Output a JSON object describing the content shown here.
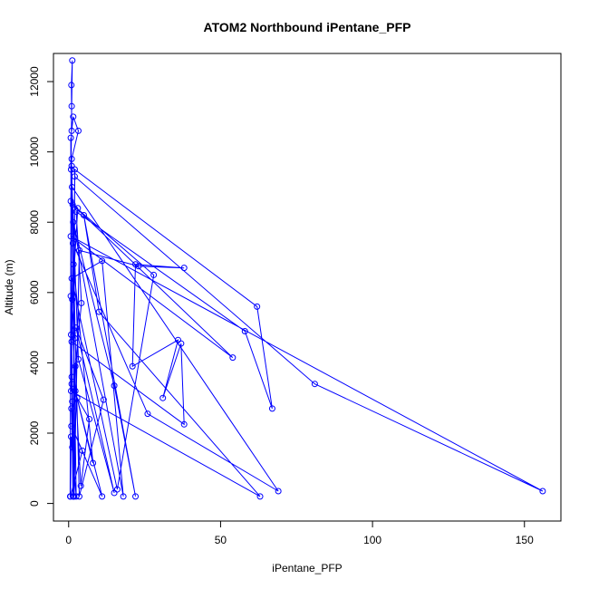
{
  "chart_data": {
    "type": "line",
    "title": "ATOM2 Northbound iPentane_PFP",
    "xlabel": "iPentane_PFP",
    "ylabel": "Altitude (m)",
    "xlim": [
      -5,
      162
    ],
    "ylim": [
      -500,
      12800
    ],
    "xticks": [
      0,
      50,
      100,
      150
    ],
    "yticks": [
      0,
      2000,
      4000,
      6000,
      8000,
      10000,
      12000
    ],
    "color": "#0000ff",
    "grid": false,
    "series": [
      {
        "points": [
          [
            0.5,
            200
          ],
          [
            0.8,
            9500
          ],
          [
            1.0,
            11300
          ],
          [
            1.2,
            12600
          ],
          [
            0.9,
            11900
          ],
          [
            1.0,
            10600
          ],
          [
            1.5,
            11000
          ],
          [
            3.2,
            10600
          ],
          [
            1.0,
            9800
          ],
          [
            0.7,
            8600
          ],
          [
            3.0,
            8400
          ],
          [
            1.2,
            5800
          ],
          [
            0.8,
            4800
          ],
          [
            1.0,
            3400
          ],
          [
            1.4,
            200
          ],
          [
            2.0,
            9500
          ],
          [
            62,
            5600
          ],
          [
            67,
            2700
          ],
          [
            58,
            4900
          ],
          [
            2.5,
            8300
          ],
          [
            4.2,
            5700
          ],
          [
            2.2,
            3900
          ],
          [
            1.8,
            200
          ],
          [
            3.5,
            7200
          ],
          [
            23,
            6750
          ],
          [
            38,
            6700
          ],
          [
            22,
            6800
          ],
          [
            21,
            3900
          ],
          [
            36,
            4650
          ],
          [
            31,
            3000
          ],
          [
            37,
            4550
          ],
          [
            38,
            2250
          ],
          [
            1.0,
            4600
          ],
          [
            1.2,
            2900
          ],
          [
            1.6,
            200
          ],
          [
            2.0,
            9300
          ],
          [
            81,
            3400
          ],
          [
            156,
            350
          ],
          [
            0.7,
            7600
          ],
          [
            54,
            4150
          ],
          [
            1.3,
            8500
          ],
          [
            28,
            6500
          ],
          [
            16,
            400
          ],
          [
            1.0,
            6400
          ],
          [
            11,
            6900
          ],
          [
            18,
            200
          ],
          [
            1.5,
            8000
          ],
          [
            15,
            3350
          ],
          [
            22,
            200
          ],
          [
            5.0,
            8200
          ],
          [
            10,
            5450
          ],
          [
            63,
            200
          ],
          [
            0.8,
            3200
          ],
          [
            1.4,
            7400
          ],
          [
            26,
            2550
          ],
          [
            69,
            350
          ],
          [
            1.1,
            9000
          ],
          [
            3.2,
            4100
          ],
          [
            15,
            300
          ],
          [
            2.4,
            5000
          ],
          [
            11.5,
            2950
          ],
          [
            3.5,
            200
          ],
          [
            1.6,
            6800
          ],
          [
            8,
            1150
          ],
          [
            2.2,
            3200
          ],
          [
            11,
            200
          ],
          [
            0.9,
            2200
          ],
          [
            4.5,
            1500
          ],
          [
            0.6,
            200
          ],
          [
            0.8,
            1900
          ],
          [
            2.5,
            200
          ],
          [
            0.7,
            10400
          ],
          [
            1.0,
            3600
          ],
          [
            1.2,
            1600
          ],
          [
            0.9,
            2700
          ],
          [
            2.8,
            3000
          ],
          [
            6.8,
            2400
          ],
          [
            4.0,
            500
          ],
          [
            0.7,
            5900
          ],
          [
            2.0,
            4700
          ],
          [
            1.0,
            9600
          ]
        ]
      }
    ]
  }
}
